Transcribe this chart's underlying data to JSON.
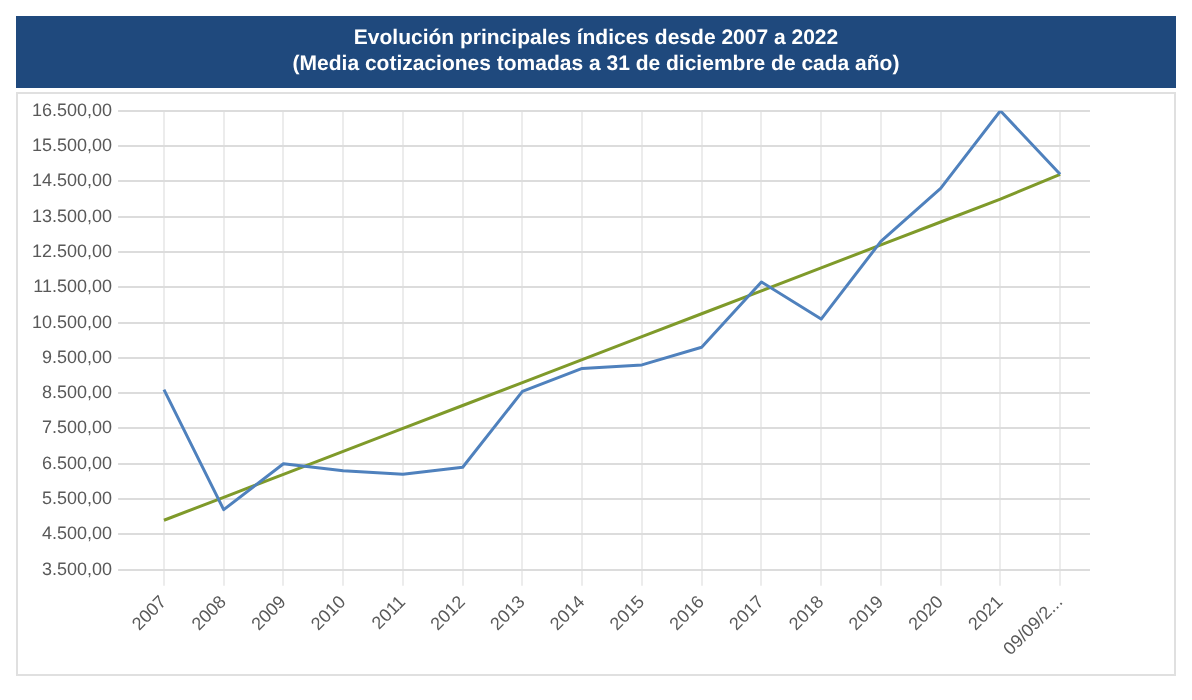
{
  "chart_data": {
    "type": "line",
    "title": "Evolución principales índices desde 2007 a 2022",
    "subtitle": "(Media cotizaciones tomadas a 31 de diciembre de cada año)",
    "categories": [
      "2007",
      "2008",
      "2009",
      "2010",
      "2011",
      "2012",
      "2013",
      "2014",
      "2015",
      "2016",
      "2017",
      "2018",
      "2019",
      "2020",
      "2021",
      "09/09/2..."
    ],
    "series": [
      {
        "color": "#4f81bd",
        "values": [
          8600,
          5200,
          6500,
          6300,
          6200,
          6400,
          8550,
          9200,
          9300,
          9800,
          11650,
          10600,
          12800,
          14300,
          16500,
          14700
        ]
      },
      {
        "type": "line",
        "color": "#7f9a2a",
        "values": [
          4900,
          5550,
          6200,
          6850,
          7500,
          8150,
          8800,
          9450,
          10100,
          10750,
          11400,
          12050,
          12700,
          13350,
          14000,
          14700
        ]
      }
    ],
    "ylim": [
      3500,
      16500
    ],
    "yticks": [
      {
        "value": 3500,
        "label": "3.500,00"
      },
      {
        "value": 4500,
        "label": "4.500,00"
      },
      {
        "value": 5500,
        "label": "5.500,00"
      },
      {
        "value": 6500,
        "label": "6.500,00"
      },
      {
        "value": 7500,
        "label": "7.500,00"
      },
      {
        "value": 8500,
        "label": "8.500,00"
      },
      {
        "value": 9500,
        "label": "9.500,00"
      },
      {
        "value": 10500,
        "label": "10.500,00"
      },
      {
        "value": 11500,
        "label": "11.500,00"
      },
      {
        "value": 12500,
        "label": "12.500,00"
      },
      {
        "value": 13500,
        "label": "13.500,00"
      },
      {
        "value": 14500,
        "label": "14.500,00"
      },
      {
        "value": 15500,
        "label": "15.500,00"
      },
      {
        "value": 16500,
        "label": "16.500,00"
      }
    ],
    "grid": true,
    "legend": false,
    "marker": "none",
    "line_style": "solid"
  }
}
